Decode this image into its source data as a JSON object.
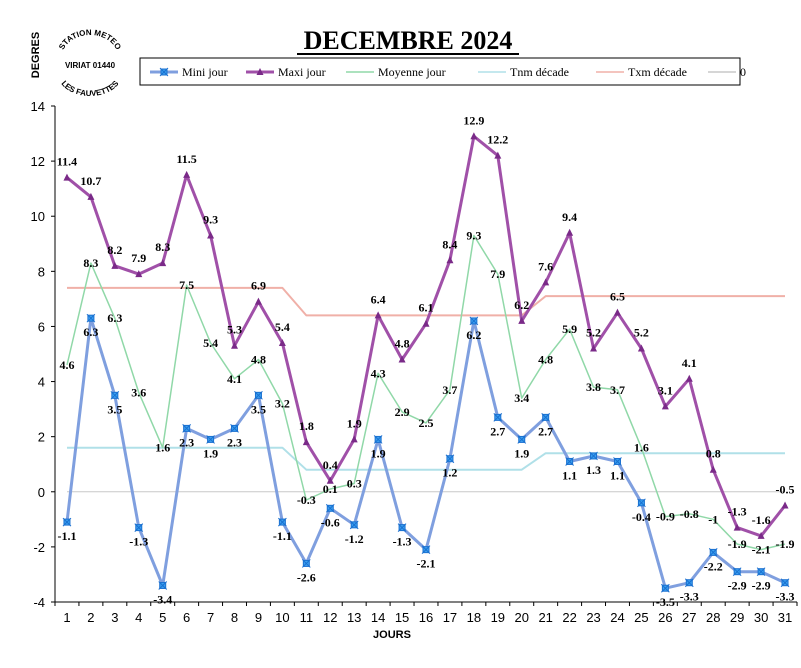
{
  "chart_data": {
    "type": "line",
    "title": "DECEMBRE 2024",
    "ylabel": "DEGRES",
    "xlabel": "JOURS",
    "ylim": [
      -4,
      14
    ],
    "yticks": [
      -4,
      -2,
      0,
      2,
      4,
      6,
      8,
      10,
      12,
      14
    ],
    "x": [
      1,
      2,
      3,
      4,
      5,
      6,
      7,
      8,
      9,
      10,
      11,
      12,
      13,
      14,
      15,
      16,
      17,
      18,
      19,
      20,
      21,
      22,
      23,
      24,
      25,
      26,
      27,
      28,
      29,
      30,
      31
    ],
    "grid": false,
    "legend_position": "top",
    "series": [
      {
        "name": "Mini jour",
        "color": "#7f9fdf",
        "marker": "star",
        "values": [
          -1.1,
          6.3,
          3.5,
          -1.3,
          -3.4,
          2.3,
          1.9,
          2.3,
          3.5,
          -1.1,
          -2.6,
          -0.6,
          -1.2,
          1.9,
          -1.3,
          -2.1,
          1.2,
          6.2,
          2.7,
          1.9,
          2.7,
          1.1,
          1.3,
          1.1,
          -0.4,
          -3.5,
          -3.3,
          -2.2,
          -2.9,
          -2.9,
          -3.3
        ],
        "labels": [
          "-1.1",
          "6.3",
          "3.5",
          "-1.3",
          "-3.4",
          "2.3",
          "1.9",
          "2.3",
          "3.5",
          "-1.1",
          "-2.6",
          "-0.6",
          "-1.2",
          "1.9",
          "-1.3",
          "-2.1",
          "1.2",
          "6.2",
          "2.7",
          "1.9",
          "2.7",
          "1.1",
          "1.3",
          "1.1",
          "-0.4",
          "-3.5",
          "-3.3",
          "-2.2",
          "-2.9",
          "-2.9",
          "-3.3"
        ]
      },
      {
        "name": "Maxi jour",
        "color": "#a050a8",
        "marker": "triangle",
        "values": [
          11.4,
          10.7,
          8.2,
          7.9,
          8.3,
          11.5,
          9.3,
          5.3,
          6.9,
          5.4,
          1.8,
          0.4,
          1.9,
          6.4,
          4.8,
          6.1,
          8.4,
          12.9,
          12.2,
          6.2,
          7.6,
          9.4,
          5.2,
          6.5,
          5.2,
          3.1,
          4.1,
          0.8,
          -1.3,
          -1.6,
          -0.5
        ],
        "labels": [
          "11.4",
          "10.7",
          "8.2",
          "7.9",
          "8.3",
          "11.5",
          "9.3",
          "5.3",
          "6.9",
          "5.4",
          "1.8",
          "0.4",
          "1.9",
          "6.4",
          "4.8",
          "6.1",
          "8.4",
          "12.9",
          "12.2",
          "6.2",
          "7.6",
          "9.4",
          "5.2",
          "6.5",
          "5.2",
          "3.1",
          "4.1",
          "0.8",
          "-1.3",
          "-1.6",
          "-0.5"
        ]
      },
      {
        "name": "Moyenne jour",
        "color": "#90d8a8",
        "marker": "none",
        "values": [
          4.6,
          8.3,
          6.3,
          3.6,
          1.6,
          7.5,
          5.4,
          4.1,
          4.8,
          3.2,
          -0.3,
          0.1,
          0.3,
          4.3,
          2.9,
          2.5,
          3.7,
          9.3,
          7.9,
          3.4,
          4.8,
          5.9,
          3.8,
          3.7,
          1.6,
          -0.9,
          -0.8,
          -1.0,
          -1.9,
          -2.1,
          -1.9
        ],
        "labels": [
          "4.6",
          "8.3",
          "6.3",
          "3.6",
          "1.6",
          "7.5",
          "5.4",
          "4.1",
          "4.8",
          "3.2",
          "-0.3",
          "0.1",
          "0.3",
          "4.3",
          "2.9",
          "2.5",
          "3.7",
          "9.3",
          "7.9",
          "3.4",
          "4.8",
          "5.9",
          "3.8",
          "3.7",
          "1.6",
          "-0.9",
          "-0.8",
          "-1",
          "-1.9",
          "-2.1",
          "-1.9"
        ]
      },
      {
        "name": "Tnm décade",
        "color": "#b0e0e8",
        "marker": "none",
        "values": [
          1.6,
          1.6,
          1.6,
          1.6,
          1.6,
          1.6,
          1.6,
          1.6,
          1.6,
          1.6,
          0.8,
          0.8,
          0.8,
          0.8,
          0.8,
          0.8,
          0.8,
          0.8,
          0.8,
          0.8,
          1.4,
          1.4,
          1.4,
          1.4,
          1.4,
          1.4,
          1.4,
          1.4,
          1.4,
          1.4,
          1.4
        ]
      },
      {
        "name": "Txm décade",
        "color": "#f0b0a8",
        "marker": "none",
        "values": [
          7.4,
          7.4,
          7.4,
          7.4,
          7.4,
          7.4,
          7.4,
          7.4,
          7.4,
          7.4,
          6.4,
          6.4,
          6.4,
          6.4,
          6.4,
          6.4,
          6.4,
          6.4,
          6.4,
          6.4,
          7.1,
          7.1,
          7.1,
          7.1,
          7.1,
          7.1,
          7.1,
          7.1,
          7.1,
          7.1,
          7.1
        ]
      },
      {
        "name": "0",
        "color": "#c8c8c8",
        "marker": "none",
        "values": [
          0,
          0,
          0,
          0,
          0,
          0,
          0,
          0,
          0,
          0,
          0,
          0,
          0,
          0,
          0,
          0,
          0,
          0,
          0,
          0,
          0,
          0,
          0,
          0,
          0,
          0,
          0,
          0,
          0,
          0,
          0
        ]
      }
    ]
  },
  "stamp": {
    "top_text": "STATION METEO",
    "middle_text": "VIRIAT 01440",
    "bottom_text": "LES FAUVETTES"
  }
}
